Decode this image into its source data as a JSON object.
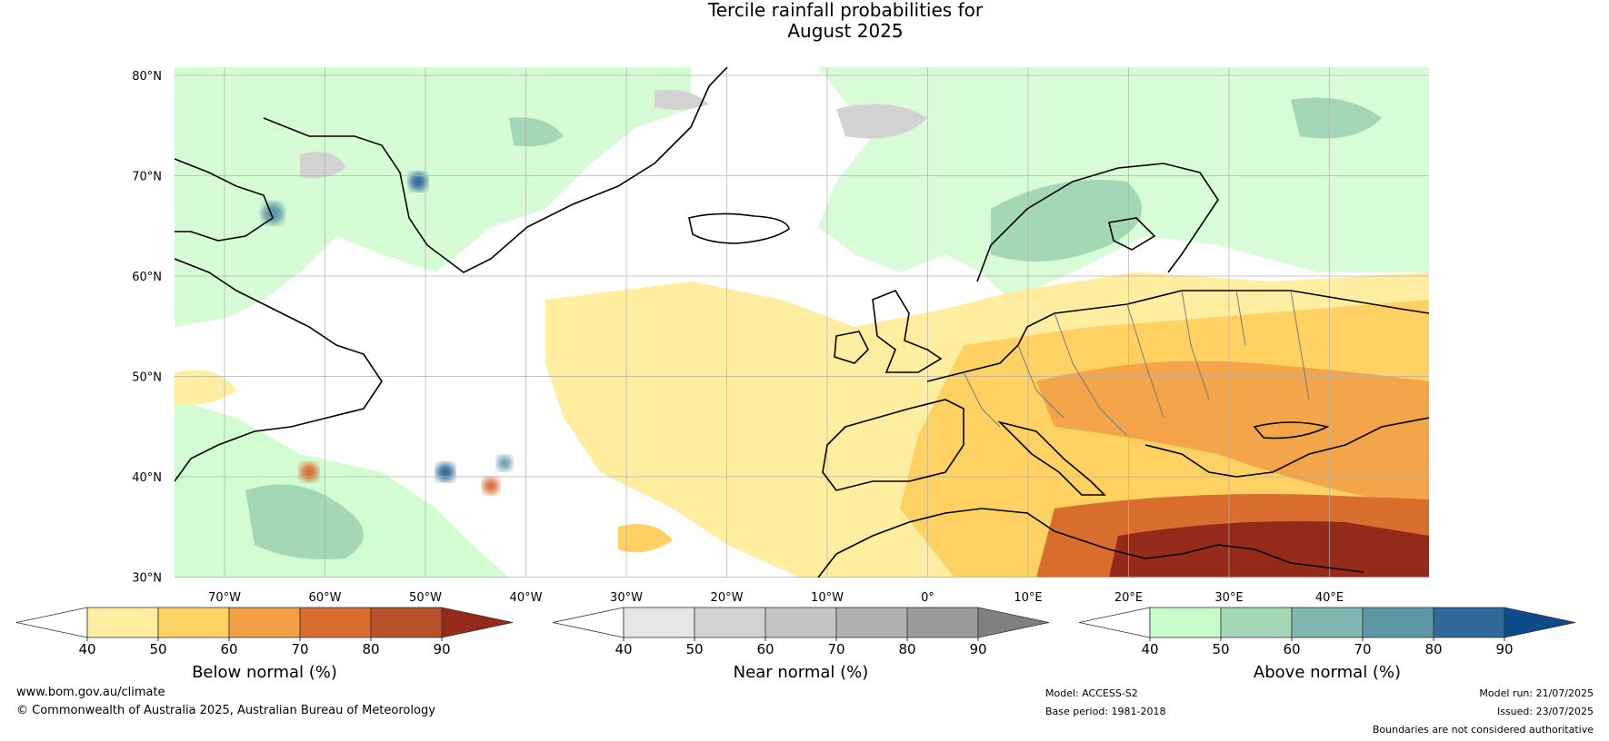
{
  "title": {
    "line1": "Tercile rainfall probabilities for",
    "line2": "August 2025"
  },
  "map": {
    "lat_labels": [
      "80°N",
      "70°N",
      "60°N",
      "50°N",
      "40°N",
      "30°N"
    ],
    "lon_labels": [
      "70°W",
      "60°W",
      "50°W",
      "40°W",
      "30°W",
      "20°W",
      "10°W",
      "0°",
      "10°E",
      "20°E",
      "30°E",
      "40°E"
    ],
    "colors": {
      "below": [
        "#ffeda0",
        "#fed163",
        "#f29e44",
        "#d96d2d",
        "#b8522b",
        "#952a1a"
      ],
      "near": [
        "#e6e6e6",
        "#d2d2d2",
        "#c4c4c4",
        "#b0b0b0",
        "#9a9a9a",
        "#808080"
      ],
      "above": [
        "#c7fbc7",
        "#a4d7b6",
        "#80b7b2",
        "#5e98a6",
        "#32699b",
        "#0d4b8a"
      ]
    }
  },
  "colorbars": [
    {
      "label": "Below normal (%)",
      "ticks": [
        "40",
        "50",
        "60",
        "70",
        "80",
        "90"
      ]
    },
    {
      "label": "Near normal (%)",
      "ticks": [
        "40",
        "50",
        "60",
        "70",
        "80",
        "90"
      ]
    },
    {
      "label": "Above normal (%)",
      "ticks": [
        "40",
        "50",
        "60",
        "70",
        "80",
        "90"
      ]
    }
  ],
  "footer": {
    "website": "www.bom.gov.au/climate",
    "copyright": "© Commonwealth of Australia 2025, Australian Bureau of Meteorology",
    "model": "Model: ACCESS-S2",
    "base_period": "Base period: 1981-2018",
    "model_run": "Model run: 21/07/2025",
    "issued": "Issued: 23/07/2025",
    "disclaimer": "Boundaries are not considered authoritative"
  }
}
